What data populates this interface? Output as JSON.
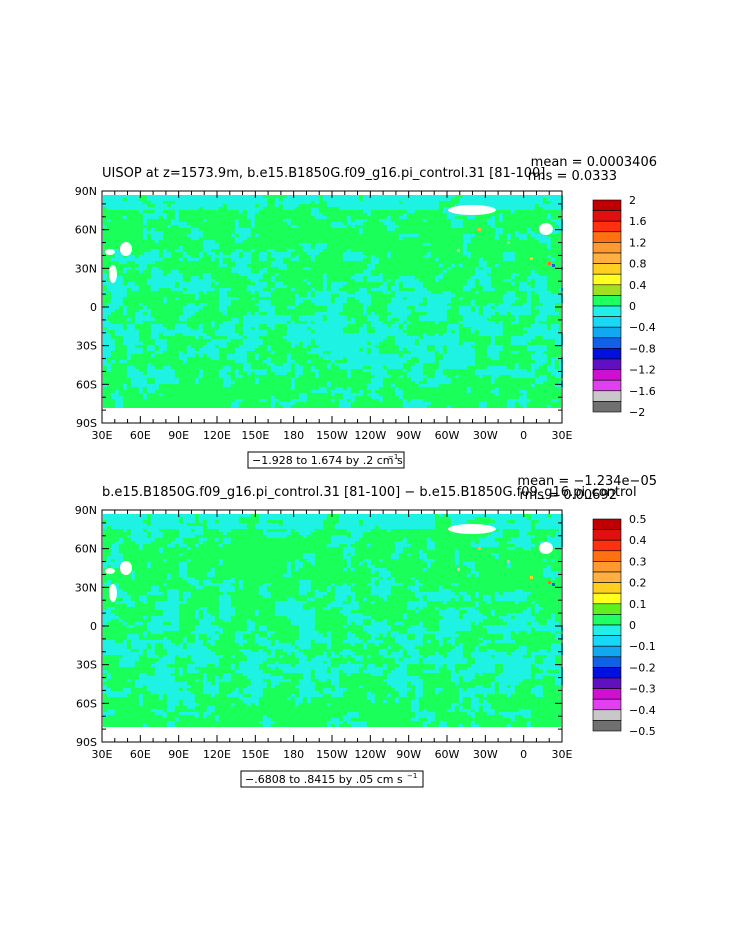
{
  "chart_data": [
    {
      "type": "heatmap",
      "title": "UISOP at z=1573.9m, b.e15.B1850G.f09_g16.pi_control.31 [81-100]",
      "stat_mean": "mean = 0.0003406",
      "stat_rms": "rms = 0.0333",
      "x_ticks": [
        "30E",
        "60E",
        "90E",
        "120E",
        "150E",
        "180",
        "150W",
        "120W",
        "90W",
        "60W",
        "30W",
        "0",
        "30E"
      ],
      "y_ticks": [
        "90N",
        "60N",
        "30N",
        "0",
        "30S",
        "60S",
        "90S"
      ],
      "range_text": "−1.928 to 1.674 by .2 cm s",
      "range_sup": "−1",
      "colorbar_labels": [
        "2",
        "1.6",
        "1.2",
        "0.8",
        "0.4",
        "0",
        "−0.4",
        "−0.8",
        "−1.2",
        "−1.6",
        "−2"
      ],
      "colorbar_colors": [
        "#c00000",
        "#e01010",
        "#ff3010",
        "#ff7010",
        "#ff9a30",
        "#ffb040",
        "#ffd020",
        "#ffff20",
        "#a0e020",
        "#20ff60",
        "#20f0e8",
        "#18d8f8",
        "#10a8f0",
        "#1060e8",
        "#0010e0",
        "#6010c0",
        "#d010d0",
        "#e040f0",
        "#c8c8c8",
        "#707070"
      ],
      "dominant_colors": {
        "ocean": "#1aff5a",
        "pattern": "#1df2e3",
        "missing": "#ffffff"
      }
    },
    {
      "type": "heatmap",
      "title": "b.e15.B1850G.f09_g16.pi_control.31 [81-100] − b.e15.B1850G.f09_g16.pi_control",
      "stat_mean": "mean = −1.234e−05",
      "stat_rms": "rms = 0.00692",
      "x_ticks": [
        "30E",
        "60E",
        "90E",
        "120E",
        "150E",
        "180",
        "150W",
        "120W",
        "90W",
        "60W",
        "30W",
        "0",
        "30E"
      ],
      "y_ticks": [
        "90N",
        "60N",
        "30N",
        "0",
        "30S",
        "60S",
        "90S"
      ],
      "range_text": "−.6808 to .8415 by .05 cm s",
      "range_sup": "−1",
      "colorbar_labels": [
        "0.5",
        "0.4",
        "0.3",
        "0.2",
        "0.1",
        "0",
        "−0.1",
        "−0.2",
        "−0.3",
        "−0.4",
        "−0.5"
      ],
      "colorbar_colors": [
        "#c00000",
        "#e01010",
        "#ff3010",
        "#ff7010",
        "#ff9a30",
        "#ffb040",
        "#ffd020",
        "#ffff20",
        "#60f020",
        "#20ff60",
        "#20f0e8",
        "#18d8f8",
        "#10a8f0",
        "#1060e8",
        "#0010e0",
        "#6010c0",
        "#d010d0",
        "#e040f0",
        "#c8c8c8",
        "#707070"
      ],
      "dominant_colors": {
        "ocean": "#1aff5a",
        "pattern": "#1df2e3",
        "missing": "#ffffff"
      }
    }
  ]
}
